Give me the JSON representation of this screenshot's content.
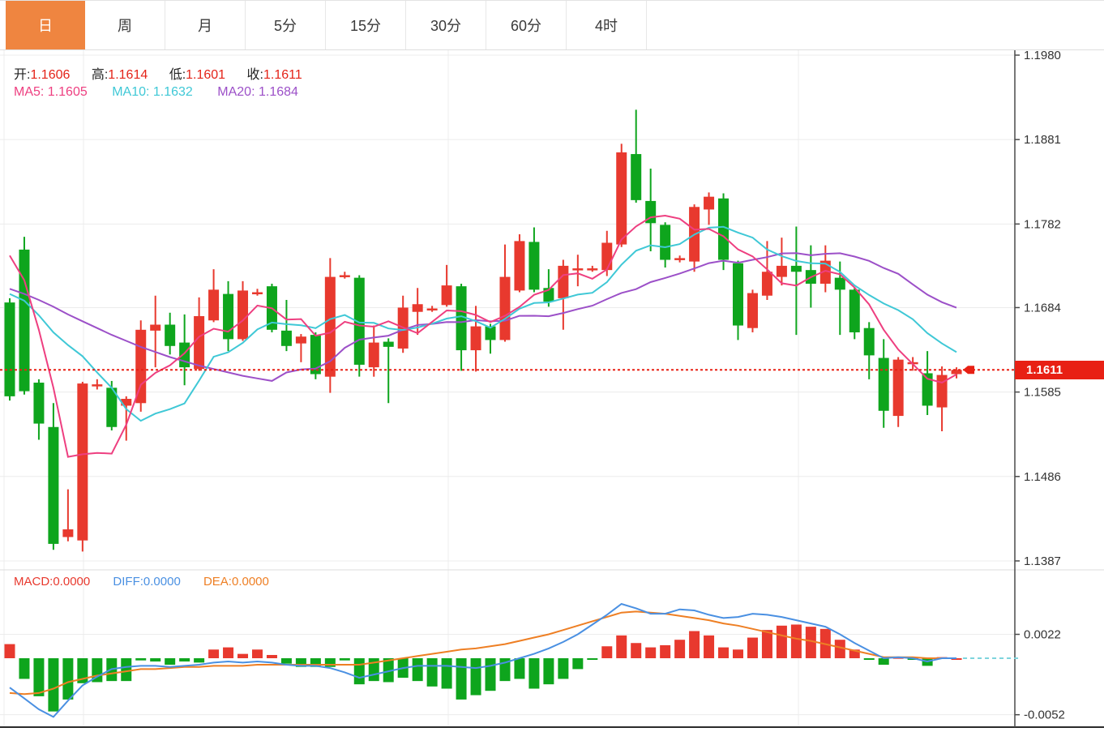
{
  "tabs": {
    "items": [
      {
        "label": "日",
        "active": true
      },
      {
        "label": "周",
        "active": false
      },
      {
        "label": "月",
        "active": false
      },
      {
        "label": "5分",
        "active": false
      },
      {
        "label": "15分",
        "active": false
      },
      {
        "label": "30分",
        "active": false
      },
      {
        "label": "60分",
        "active": false
      },
      {
        "label": "4时",
        "active": false
      }
    ]
  },
  "ohlc": {
    "open_label": "开:",
    "open": "1.1606",
    "high_label": "高:",
    "high": "1.1614",
    "low_label": "低:",
    "low": "1.1601",
    "close_label": "收:",
    "close": "1.1611"
  },
  "ma_readout": {
    "ma5_label": "MA5:",
    "ma5": "1.1605",
    "ma10_label": "MA10:",
    "ma10": "1.1632",
    "ma20_label": "MA20:",
    "ma20": "1.1684"
  },
  "macd_readout": {
    "macd_label": "MACD:",
    "macd": "0.0000",
    "diff_label": "DIFF:",
    "diff": "0.0000",
    "dea_label": "DEA:",
    "dea": "0.0000"
  },
  "price_axis": {
    "ticks": [
      "1.1980",
      "1.1881",
      "1.1782",
      "1.1684",
      "1.1585",
      "1.1486",
      "1.1387"
    ],
    "last_price": "1.1611"
  },
  "macd_axis": {
    "ticks": [
      "0.0022",
      "-0.0052"
    ]
  },
  "colors": {
    "up": "#e8392e",
    "down": "#0ea51d",
    "ma5": "#ee3f80",
    "ma10": "#3fc8d6",
    "ma20": "#9c50c8",
    "diff": "#4a90e2",
    "dea": "#ee7f24",
    "price_line": "#e82014",
    "zero_dash": "#7ed4dd",
    "grid": "#ececec",
    "axis": "#4a4a4a",
    "tick_text": "#333333",
    "accent_tab": "#ef8540"
  },
  "chart_data": {
    "type": "candlestick",
    "title": "",
    "xlabel": "",
    "ylabel": "",
    "grid": true,
    "legend_position": "top-left",
    "price_axis_range": [
      1.138,
      1.199
    ],
    "price_ticks": [
      1.198,
      1.1881,
      1.1782,
      1.1684,
      1.1585,
      1.1486,
      1.1387
    ],
    "last_price": 1.1611,
    "dotted_line_price": 1.1611,
    "ohlc_current": {
      "open": 1.1606,
      "high": 1.1614,
      "low": 1.1601,
      "close": 1.1611
    },
    "candles": [
      [
        1.169,
        1.1695,
        1.1575,
        1.158
      ],
      [
        1.1752,
        1.1767,
        1.1582,
        1.1586
      ],
      [
        1.1596,
        1.16,
        1.1529,
        1.1548
      ],
      [
        1.1544,
        1.1572,
        1.14,
        1.1407
      ],
      [
        1.1415,
        1.1471,
        1.141,
        1.1424
      ],
      [
        1.1411,
        1.1597,
        1.1398,
        1.1595
      ],
      [
        1.1592,
        1.16,
        1.1588,
        1.1594
      ],
      [
        1.159,
        1.1598,
        1.154,
        1.1544
      ],
      [
        1.1569,
        1.158,
        1.1528,
        1.1577
      ],
      [
        1.1572,
        1.1669,
        1.1562,
        1.1658
      ],
      [
        1.1657,
        1.1698,
        1.1614,
        1.1664
      ],
      [
        1.1664,
        1.1678,
        1.1629,
        1.1639
      ],
      [
        1.1643,
        1.1676,
        1.1593,
        1.1614
      ],
      [
        1.1612,
        1.1696,
        1.161,
        1.1674
      ],
      [
        1.1669,
        1.1729,
        1.1667,
        1.1705
      ],
      [
        1.17,
        1.1715,
        1.1633,
        1.1647
      ],
      [
        1.1647,
        1.1715,
        1.1645,
        1.1704
      ],
      [
        1.1701,
        1.1706,
        1.1698,
        1.1702
      ],
      [
        1.1709,
        1.1712,
        1.1655,
        1.1658
      ],
      [
        1.1657,
        1.1693,
        1.1633,
        1.1639
      ],
      [
        1.1642,
        1.1653,
        1.162,
        1.165
      ],
      [
        1.1652,
        1.1655,
        1.16,
        1.1606
      ],
      [
        1.1603,
        1.1742,
        1.1584,
        1.172
      ],
      [
        1.1721,
        1.1726,
        1.1718,
        1.1722
      ],
      [
        1.1719,
        1.1722,
        1.1603,
        1.1617
      ],
      [
        1.1614,
        1.1663,
        1.1603,
        1.1643
      ],
      [
        1.1644,
        1.1648,
        1.1572,
        1.1638
      ],
      [
        1.1636,
        1.1698,
        1.1631,
        1.1684
      ],
      [
        1.1679,
        1.1707,
        1.1652,
        1.1688
      ],
      [
        1.1681,
        1.1686,
        1.1679,
        1.1683
      ],
      [
        1.1687,
        1.1734,
        1.1685,
        1.171
      ],
      [
        1.1709,
        1.1712,
        1.161,
        1.1634
      ],
      [
        1.1634,
        1.1686,
        1.1609,
        1.1662
      ],
      [
        1.1662,
        1.1665,
        1.163,
        1.1646
      ],
      [
        1.1646,
        1.1758,
        1.1644,
        1.172
      ],
      [
        1.1704,
        1.177,
        1.1702,
        1.1762
      ],
      [
        1.1761,
        1.1778,
        1.1702,
        1.1705
      ],
      [
        1.1707,
        1.1729,
        1.1685,
        1.1691
      ],
      [
        1.1695,
        1.174,
        1.1658,
        1.1733
      ],
      [
        1.1728,
        1.1746,
        1.1709,
        1.173
      ],
      [
        1.1728,
        1.1733,
        1.1726,
        1.173
      ],
      [
        1.1728,
        1.1774,
        1.1721,
        1.176
      ],
      [
        1.1758,
        1.1876,
        1.1755,
        1.1866
      ],
      [
        1.1864,
        1.1916,
        1.1807,
        1.181
      ],
      [
        1.1809,
        1.1847,
        1.175,
        1.1783
      ],
      [
        1.1781,
        1.1784,
        1.1731,
        1.174
      ],
      [
        1.174,
        1.1745,
        1.1737,
        1.1742
      ],
      [
        1.1738,
        1.1805,
        1.1726,
        1.1802
      ],
      [
        1.1799,
        1.1819,
        1.1781,
        1.1814
      ],
      [
        1.1812,
        1.1818,
        1.1728,
        1.174
      ],
      [
        1.1736,
        1.1739,
        1.1646,
        1.1663
      ],
      [
        1.166,
        1.1705,
        1.1655,
        1.1701
      ],
      [
        1.1698,
        1.1762,
        1.1693,
        1.1726
      ],
      [
        1.172,
        1.1766,
        1.171,
        1.1733
      ],
      [
        1.1733,
        1.1779,
        1.1652,
        1.1726
      ],
      [
        1.1728,
        1.1757,
        1.1684,
        1.1712
      ],
      [
        1.1712,
        1.1757,
        1.1702,
        1.1739
      ],
      [
        1.1719,
        1.1738,
        1.1652,
        1.1705
      ],
      [
        1.1705,
        1.1708,
        1.1647,
        1.1655
      ],
      [
        1.166,
        1.1667,
        1.16,
        1.1628
      ],
      [
        1.1625,
        1.1647,
        1.1543,
        1.1563
      ],
      [
        1.1557,
        1.1626,
        1.1544,
        1.1623
      ],
      [
        1.1618,
        1.1626,
        1.161,
        1.162
      ],
      [
        1.1607,
        1.1633,
        1.1558,
        1.1569
      ],
      [
        1.1567,
        1.1615,
        1.1539,
        1.1605
      ],
      [
        1.1606,
        1.1614,
        1.1601,
        1.1611
      ]
    ],
    "ma_periods": [
      5,
      10,
      20
    ],
    "ma5_lead": [
      1.1745,
      1.1716,
      1.1658,
      1.159
    ],
    "ma10_lead": [
      1.17,
      1.1692,
      1.1675,
      1.1655,
      1.164,
      1.1627,
      1.1608,
      1.159,
      1.1565
    ],
    "ma20_lead": [
      1.1706,
      1.17,
      1.1693,
      1.1685,
      1.1676,
      1.1668,
      1.166,
      1.1652,
      1.1645,
      1.1638,
      1.1632,
      1.1626,
      1.1621,
      1.1616,
      1.1612,
      1.1608,
      1.1604,
      1.1601,
      1.1598
    ],
    "macd": {
      "axis_ticks": [
        0.0022,
        -0.0052
      ],
      "hist_1e4": [
        13,
        -19,
        -35,
        -49,
        -38,
        -23,
        -22,
        -21,
        -21,
        -2,
        -3,
        -6,
        -3,
        -4,
        8,
        10,
        4,
        8,
        3,
        -5,
        -8,
        -8,
        -8,
        -2,
        -24,
        -21,
        -22,
        -18,
        -21,
        -26,
        -28,
        -38,
        -34,
        -30,
        -21,
        -19,
        -28,
        -24,
        -19,
        -10,
        -1,
        11,
        21,
        14,
        10,
        12,
        17,
        25,
        21,
        10,
        8,
        19,
        26,
        30,
        31,
        29,
        27,
        17,
        8,
        -1,
        -6,
        1,
        -1,
        -7,
        1,
        0
      ],
      "diff_1e4": [
        -27,
        -37,
        -47,
        -54,
        -39,
        -25,
        -17,
        -10,
        -8,
        -7,
        -7,
        -8,
        -7,
        -6,
        -4,
        -3,
        -4,
        -3,
        -4,
        -6,
        -7,
        -7,
        -9,
        -13,
        -18,
        -15,
        -12,
        -9,
        -7,
        -7,
        -7,
        -8,
        -9,
        -7,
        -4,
        0,
        4,
        9,
        15,
        22,
        31,
        40,
        50,
        46,
        41,
        41,
        45,
        44,
        40,
        37,
        38,
        41,
        40,
        38,
        35,
        32,
        29,
        22,
        14,
        7,
        0,
        1,
        0,
        -3,
        0,
        0
      ],
      "dea_1e4": [
        -32,
        -33,
        -32,
        -28,
        -22,
        -19,
        -16,
        -14,
        -12,
        -10,
        -10,
        -9,
        -8,
        -8,
        -7,
        -7,
        -7,
        -6,
        -6,
        -6,
        -6,
        -6,
        -6,
        -6,
        -6,
        -4,
        -2,
        0,
        2,
        4,
        6,
        8,
        9,
        11,
        13,
        16,
        19,
        22,
        26,
        30,
        34,
        38,
        42,
        43,
        42,
        41,
        39,
        37,
        35,
        32,
        30,
        27,
        24,
        21,
        18,
        16,
        13,
        10,
        7,
        4,
        1,
        1,
        1,
        0,
        0,
        0
      ]
    },
    "vertical_gridlines_x": [
      5,
      103,
      553,
      985
    ]
  }
}
